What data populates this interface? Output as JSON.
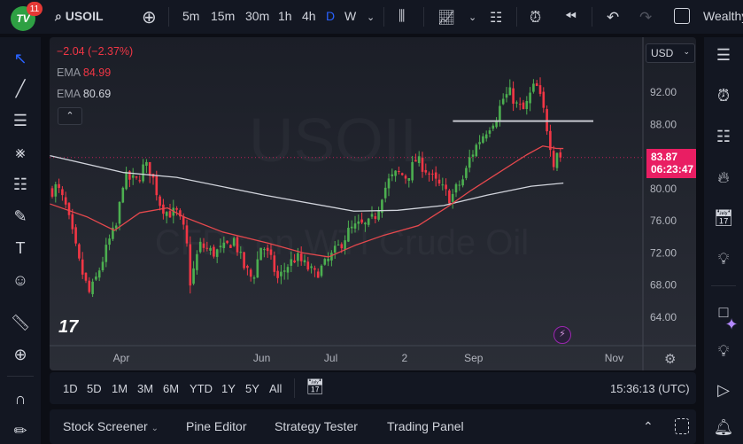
{
  "header": {
    "logo_text": "TV",
    "notification_count": "11",
    "symbol": "USOIL",
    "intervals": [
      "5m",
      "15m",
      "30m",
      "1h",
      "4h",
      "D",
      "W"
    ],
    "active_interval": "D",
    "account": "Wealthy"
  },
  "legend": {
    "change": "−2.04 (−2.37%)",
    "ema1_label": "EMA",
    "ema1_value": "84.99",
    "ema2_label": "EMA",
    "ema2_value": "80.69"
  },
  "watermark": {
    "symbol": "USOIL",
    "description": "CFDs on WTI Crude Oil"
  },
  "price_axis": {
    "currency": "USD",
    "ticks": [
      "92.00",
      "88.00",
      "80.00",
      "76.00",
      "72.00",
      "68.00",
      "64.00"
    ],
    "last_price": "83.87",
    "countdown": "06:23:47"
  },
  "time_axis": {
    "labels": [
      "Apr",
      "Jun",
      "Jul",
      "2",
      "Sep",
      "Nov"
    ]
  },
  "range_bar": {
    "ranges": [
      "1D",
      "5D",
      "1M",
      "3M",
      "6M",
      "YTD",
      "1Y",
      "5Y",
      "All"
    ],
    "clock": "15:36:13 (UTC)"
  },
  "bottom_panel": {
    "tabs": [
      "Stock Screener",
      "Pine Editor",
      "Strategy Tester",
      "Trading Panel"
    ]
  },
  "colors": {
    "up": "#4caf50",
    "down": "#f23645",
    "ema_fast": "#e5484d",
    "ema_slow": "#d1d4dc",
    "last_price": "#e91e63",
    "accent": "#2962ff"
  },
  "chart_data": {
    "type": "candlestick",
    "ylim": [
      61,
      98
    ],
    "y_ticks": [
      64,
      68,
      72,
      76,
      80,
      88,
      92
    ],
    "x_labels": [
      [
        "Apr",
        "2023-04-01"
      ],
      [
        "Jun",
        "2023-06-01"
      ],
      [
        "Jul",
        "2023-07-01"
      ],
      [
        "2",
        "2023-08-02"
      ],
      [
        "Sep",
        "2023-09-01"
      ],
      [
        "Nov",
        "2023-11-01"
      ]
    ],
    "close_path": [
      [
        "2023-03-02",
        79.8
      ],
      [
        "2023-03-04",
        80.3
      ],
      [
        "2023-03-08",
        77.6
      ],
      [
        "2023-03-14",
        70.4
      ],
      [
        "2023-03-18",
        67
      ],
      [
        "2023-03-20",
        68
      ],
      [
        "2023-03-23",
        70.4
      ],
      [
        "2023-03-27",
        73.7
      ],
      [
        "2023-03-30",
        75.4
      ],
      [
        "2023-04-02",
        81.4
      ],
      [
        "2023-04-08",
        80.9
      ],
      [
        "2023-04-11",
        83
      ],
      [
        "2023-04-14",
        82
      ],
      [
        "2023-04-18",
        78
      ],
      [
        "2023-04-21",
        77
      ],
      [
        "2023-04-25",
        77
      ],
      [
        "2023-04-29",
        74.2
      ],
      [
        "2023-05-01",
        68.2
      ],
      [
        "2023-05-05",
        73
      ],
      [
        "2023-05-11",
        72
      ],
      [
        "2023-05-16",
        72.6
      ],
      [
        "2023-05-20",
        73.7
      ],
      [
        "2023-05-24",
        70.4
      ],
      [
        "2023-05-28",
        68.7
      ],
      [
        "2023-06-01",
        73.2
      ],
      [
        "2023-06-05",
        71
      ],
      [
        "2023-06-08",
        68.7
      ],
      [
        "2023-06-12",
        70.4
      ],
      [
        "2023-06-16",
        71.5
      ],
      [
        "2023-06-20",
        70.4
      ],
      [
        "2023-06-24",
        69.3
      ],
      [
        "2023-06-28",
        70.4
      ],
      [
        "2023-07-01",
        71.5
      ],
      [
        "2023-07-05",
        73
      ],
      [
        "2023-07-09",
        74.8
      ],
      [
        "2023-07-13",
        75.4
      ],
      [
        "2023-07-17",
        75.4
      ],
      [
        "2023-07-21",
        77
      ],
      [
        "2023-07-23",
        79.2
      ],
      [
        "2023-07-26",
        80.9
      ],
      [
        "2023-07-30",
        82
      ],
      [
        "2023-08-03",
        81.4
      ],
      [
        "2023-08-07",
        83.6
      ],
      [
        "2023-08-11",
        82.5
      ],
      [
        "2023-08-15",
        80.9
      ],
      [
        "2023-08-19",
        79.8
      ],
      [
        "2023-08-22",
        78.7
      ],
      [
        "2023-08-24",
        79.8
      ],
      [
        "2023-08-28",
        81.4
      ],
      [
        "2023-08-30",
        83.6
      ],
      [
        "2023-09-03",
        85.8
      ],
      [
        "2023-09-07",
        87.5
      ],
      [
        "2023-09-11",
        89.1
      ],
      [
        "2023-09-14",
        91.3
      ],
      [
        "2023-09-17",
        91.9
      ],
      [
        "2023-09-20",
        90.2
      ],
      [
        "2023-09-23",
        89.7
      ],
      [
        "2023-09-26",
        92
      ],
      [
        "2023-09-28",
        93
      ],
      [
        "2023-10-01",
        90.2
      ],
      [
        "2023-10-04",
        86
      ],
      [
        "2023-10-06",
        83
      ],
      [
        "2023-10-08",
        85.8
      ],
      [
        "2023-10-10",
        83.87
      ]
    ],
    "ema_fast": [
      [
        "2023-03-01",
        78.1
      ],
      [
        "2023-03-17",
        76.5
      ],
      [
        "2023-03-29",
        74.8
      ],
      [
        "2023-04-09",
        77
      ],
      [
        "2023-04-21",
        77.6
      ],
      [
        "2023-04-28",
        76.5
      ],
      [
        "2023-05-15",
        74.6
      ],
      [
        "2023-06-04",
        73.2
      ],
      [
        "2023-06-19",
        72
      ],
      [
        "2023-06-30",
        71.5
      ],
      [
        "2023-07-12",
        73
      ],
      [
        "2023-07-24",
        74.2
      ],
      [
        "2023-08-08",
        75.4
      ],
      [
        "2023-08-20",
        77.6
      ],
      [
        "2023-08-31",
        79.8
      ],
      [
        "2023-09-12",
        82
      ],
      [
        "2023-09-24",
        84.2
      ],
      [
        "2023-10-01",
        85.3
      ],
      [
        "2023-10-07",
        85
      ],
      [
        "2023-10-10",
        84.99
      ]
    ],
    "ema_slow": [
      [
        "2023-03-01",
        84.1
      ],
      [
        "2023-04-02",
        82
      ],
      [
        "2023-04-25",
        81.4
      ],
      [
        "2023-06-02",
        79.2
      ],
      [
        "2023-07-11",
        77.2
      ],
      [
        "2023-07-30",
        77.3
      ],
      [
        "2023-08-19",
        77.9
      ],
      [
        "2023-09-07",
        79.2
      ],
      [
        "2023-09-26",
        80.3
      ],
      [
        "2023-10-10",
        80.69
      ]
    ],
    "horizontal_line": {
      "price": 88.4,
      "from": "2023-08-23",
      "to": "2023-10-23"
    },
    "last_price": 83.87
  }
}
